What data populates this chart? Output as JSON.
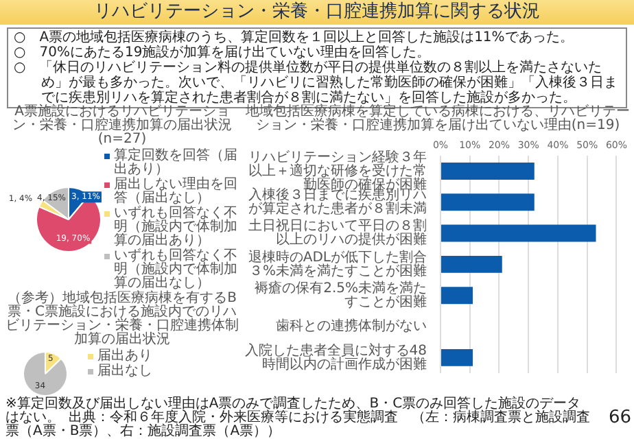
{
  "chart_data": [
    {
      "type": "other",
      "title": "リハビリテーション・栄養・口腔連携加算に関する状況",
      "annotations": [
        "○　A票の地域包括医療病棟のうち、算定回数を１回以上と回答した施設は11%であった。",
        "○　70%にあたる19施設が加算を届け出ていない理由を回答した。",
        "○　「休日のリハビリテーション料の提供単位数が平日の提供単位数の８割以上を満たさないため」が最も多かった。次いで、「リハビリに習熟した常勤医師の確保が困難」「入棟後３日までに疾患別リハを算定された患者割合が８割に満たない」を回答した施設が多かった。"
      ]
    },
    {
      "type": "pie",
      "title": "A票施設におけるリハビリテーション・栄養・口腔連携加算の届出状況(n=27)",
      "categories": [
        "算定回数を回答（届出あり）",
        "届出しない理由を回答（届出なし）",
        "いずれも回答なく不明（施設内で体制加算の届出あり）",
        "いずれも回答なく不明（施設内で体制加算の届出なし）"
      ],
      "values": [
        3,
        19,
        1,
        4
      ],
      "value_labels": [
        "3, 11%",
        "19, 70%",
        "1, 4%",
        "4, 15%"
      ],
      "colors": [
        "#0b5cad",
        "#de4a6c",
        "#f8e27f",
        "#bfbfbf"
      ],
      "legend": "right"
    },
    {
      "type": "bar",
      "orientation": "horizontal",
      "title": "地域包括医療病棟を算定している病棟における、リハビリテーション・栄養・口腔連携加算を届け出ていない理由(n=19)",
      "categories": [
        "リハビリテーション経験３年以上＋適切な研修を受けた常勤医師の確保が困難",
        "入棟後３日までに疾患別リハが算定された患者が８割未満",
        "土日祝日において平日の８割以上のリハの提供が困難",
        "退棟時のADLが低下した割合３%未満を満たすことが困難",
        "褥瘡の保有2.5%未満を満たすことが困難",
        "歯科との連携体制がない",
        "入院した患者全員に対する48時間以内の計画作成が困難"
      ],
      "values": [
        32,
        32,
        53,
        21,
        11,
        0,
        11
      ],
      "color": "#0b5cad",
      "xlim": [
        0,
        60
      ],
      "xticks": [
        {
          "value": 0,
          "label": "0%"
        },
        {
          "value": 10,
          "label": "10%"
        },
        {
          "value": 20,
          "label": "20%"
        },
        {
          "value": 30,
          "label": "30%"
        },
        {
          "value": 40,
          "label": "40%"
        },
        {
          "value": 50,
          "label": "50%"
        },
        {
          "value": 60,
          "label": "60%"
        }
      ],
      "grid": "x"
    },
    {
      "type": "pie",
      "title": "（参考）地域包括医療病棟を有するB票・C票施設における施設内でのリハビリテーション・栄養・口腔連携体制加算の届出状況",
      "categories": [
        "届出あり",
        "届出なし"
      ],
      "values": [
        5,
        34
      ],
      "data_labels": true,
      "colors": [
        "#f8e27f",
        "#bfbfbf"
      ],
      "legend": "right"
    },
    {
      "type": "other",
      "annotations": [
        "※算定回数及び届出しない理由はA票のみで調査したため、B・C票のみ回答した施設のデータはない。",
        "出典：令和６年度入院・外来医療等における実態調査　（左：病棟調査票と施設調査票（A票・B票）、右：施設調査票（A票））",
        "66"
      ]
    }
  ]
}
